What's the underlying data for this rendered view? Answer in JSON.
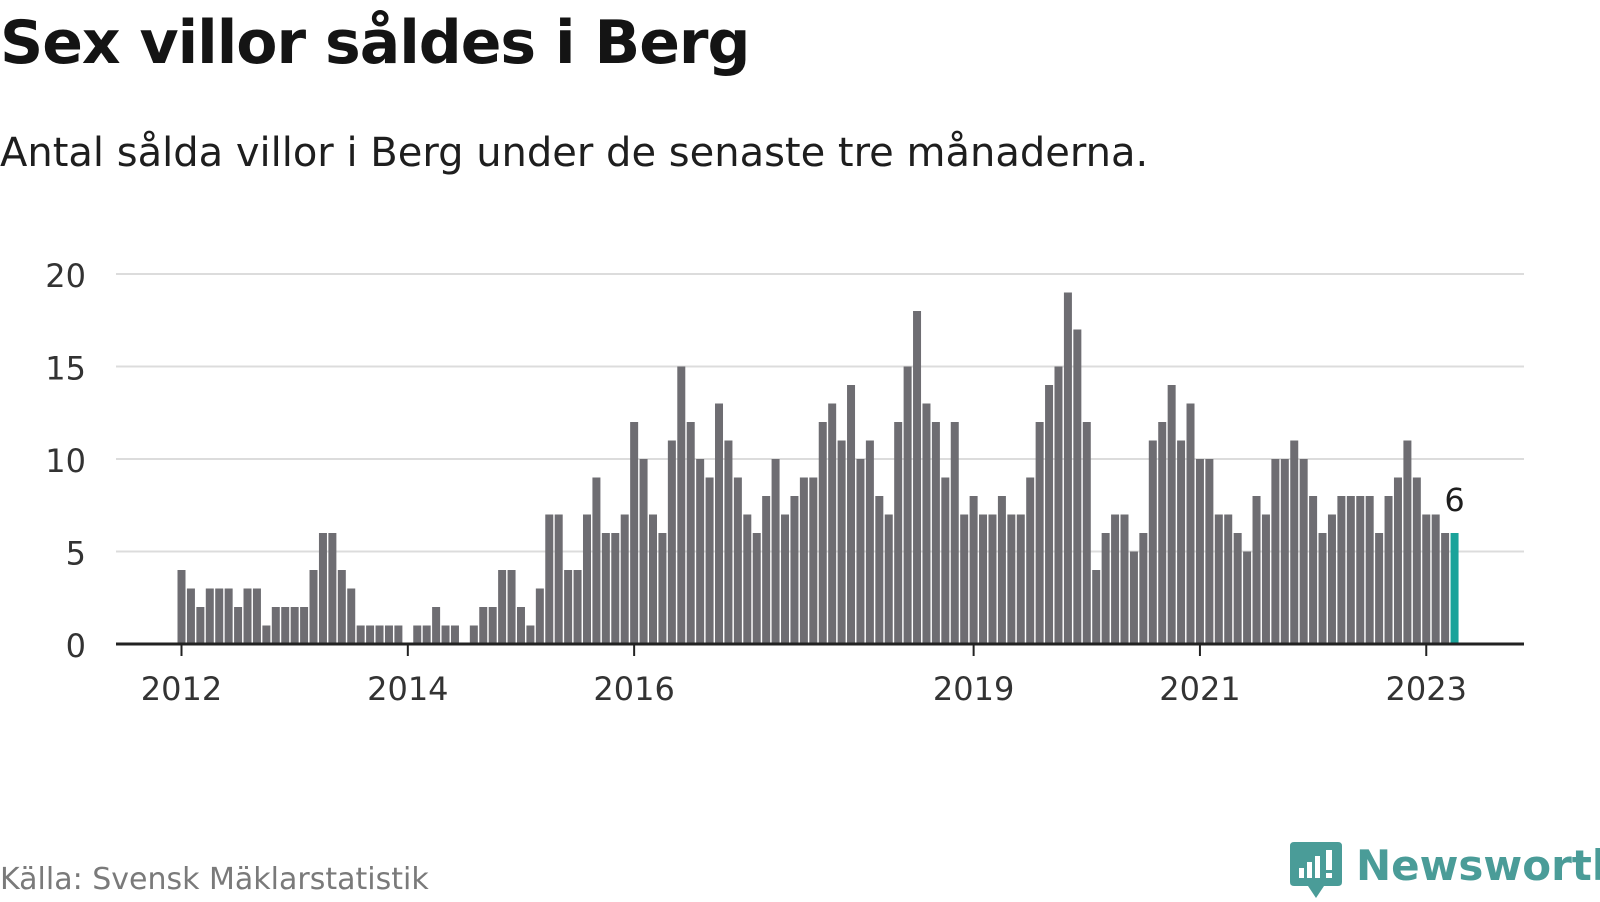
{
  "title": "Sex villor såldes i Berg",
  "subtitle": "Antal sålda villor i Berg under de senaste tre månaderna.",
  "source": "Källa: Svensk Mäklarstatistik",
  "logo": {
    "text": "Newsworthy",
    "icon": "newsworthy-chart-bubble-icon"
  },
  "colors": {
    "bar": "#6e6d72",
    "highlight": "#1aa39a",
    "grid": "#dcdcdc",
    "axis": "#222222",
    "logo": "#4a9c98"
  },
  "chart_data": {
    "type": "bar",
    "title": "Sex villor såldes i Berg",
    "subtitle": "Antal sålda villor i Berg under de senaste tre månaderna.",
    "xlabel": "",
    "ylabel": "",
    "ylim": [
      0,
      20
    ],
    "yticks": [
      "0",
      "5",
      "10",
      "15",
      "20"
    ],
    "xticks": [
      "2012",
      "2014",
      "2016",
      "2019",
      "2021",
      "2023"
    ],
    "grid": true,
    "highlight_label": "6",
    "start": "2012-01",
    "values": [
      4,
      3,
      2,
      3,
      3,
      3,
      2,
      3,
      3,
      1,
      2,
      2,
      2,
      2,
      4,
      6,
      6,
      4,
      3,
      1,
      1,
      1,
      1,
      1,
      0,
      1,
      1,
      2,
      1,
      1,
      0,
      1,
      2,
      2,
      4,
      4,
      2,
      1,
      3,
      7,
      7,
      4,
      4,
      7,
      9,
      6,
      6,
      7,
      12,
      10,
      7,
      6,
      11,
      15,
      12,
      10,
      9,
      13,
      11,
      9,
      7,
      6,
      8,
      10,
      7,
      8,
      9,
      9,
      12,
      13,
      11,
      14,
      10,
      11,
      8,
      7,
      12,
      15,
      18,
      13,
      12,
      9,
      12,
      7,
      8,
      7,
      7,
      8,
      7,
      7,
      9,
      12,
      14,
      15,
      19,
      17,
      12,
      4,
      6,
      7,
      7,
      5,
      6,
      11,
      12,
      14,
      11,
      13,
      10,
      10,
      7,
      7,
      6,
      5,
      8,
      7,
      10,
      10,
      11,
      10,
      8,
      6,
      7,
      8,
      8,
      8,
      8,
      6,
      8,
      9,
      11,
      9,
      7,
      7,
      6,
      6
    ]
  }
}
